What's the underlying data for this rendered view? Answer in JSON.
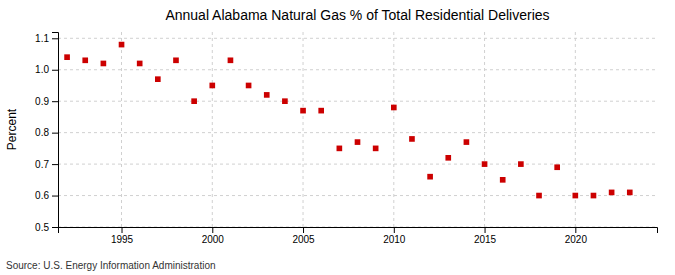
{
  "chart_data": {
    "type": "scatter",
    "title": "Annual Alabama Natural Gas % of Total Residential Deliveries",
    "ylabel": "Percent",
    "source": "Source: U.S. Energy Information Administration",
    "x": [
      1992,
      1993,
      1994,
      1995,
      1996,
      1997,
      1998,
      1999,
      2000,
      2001,
      2002,
      2003,
      2004,
      2005,
      2006,
      2007,
      2008,
      2009,
      2010,
      2011,
      2012,
      2013,
      2014,
      2015,
      2016,
      2017,
      2018,
      2019,
      2020,
      2021,
      2022,
      2023
    ],
    "values": [
      1.04,
      1.03,
      1.02,
      1.08,
      1.02,
      0.97,
      1.03,
      0.9,
      0.95,
      1.03,
      0.95,
      0.92,
      0.9,
      0.87,
      0.87,
      0.75,
      0.77,
      0.75,
      0.88,
      0.78,
      0.66,
      0.72,
      0.77,
      0.7,
      0.65,
      0.7,
      0.6,
      0.69,
      0.6,
      0.6,
      0.61,
      0.61
    ],
    "color": "#cc0000",
    "marker": "square",
    "xlim": [
      1991.5,
      2024.5
    ],
    "ylim": [
      0.5,
      1.12
    ],
    "xticks": [
      1995,
      2000,
      2005,
      2010,
      2015,
      2020
    ],
    "yticks": [
      0.5,
      0.6,
      0.7,
      0.8,
      0.9,
      {
        "value": 1.0,
        "label": "1.0"
      },
      1.1
    ],
    "grid": true
  }
}
